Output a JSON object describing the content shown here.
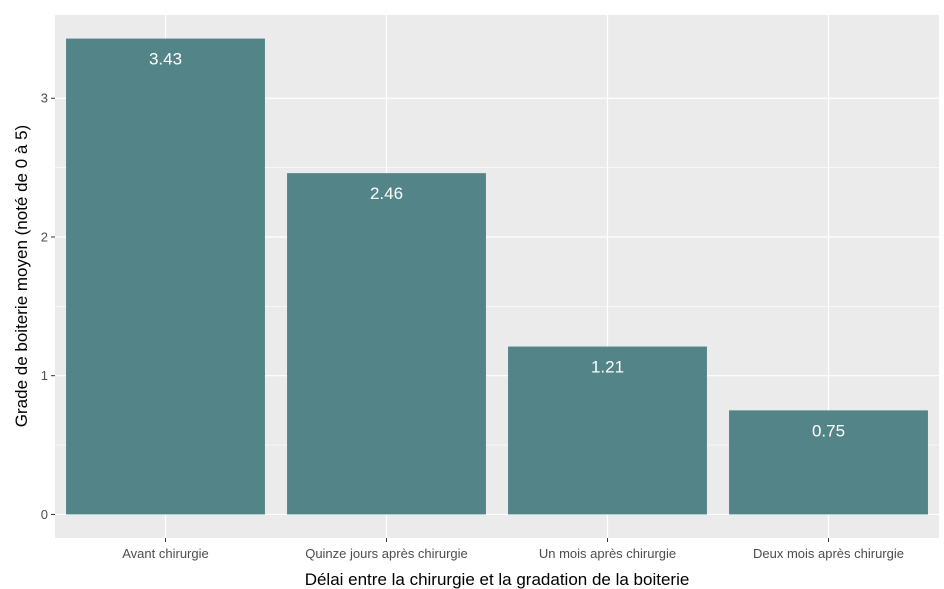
{
  "chart_data": {
    "type": "bar",
    "title": "",
    "xlabel": "Délai entre la chirurgie et la gradation de la boiterie",
    "ylabel": "Grade de boiterie moyen (noté de 0 à 5)",
    "categories": [
      "Avant chirurgie",
      "Quinze jours après chirurgie",
      "Un mois après chirurgie",
      "Deux mois après chirurgie"
    ],
    "values": [
      3.43,
      2.46,
      1.21,
      0.75
    ],
    "data_labels": [
      "3.43",
      "2.46",
      "1.21",
      "0.75"
    ],
    "yticks": [
      0,
      1,
      2,
      3
    ],
    "ytick_labels": [
      "0",
      "1",
      "2",
      "3"
    ],
    "ylim": [
      -0.17,
      3.6
    ],
    "grid": true,
    "legend": "none",
    "colors": {
      "bar": "#538487",
      "panel": "#ebebeb",
      "grid": "#ffffff",
      "label": "#ffffff"
    }
  }
}
